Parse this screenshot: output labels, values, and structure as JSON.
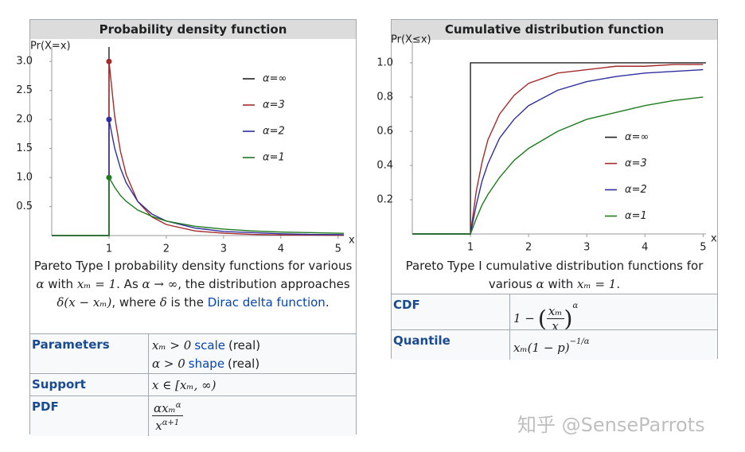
{
  "chart_data": [
    {
      "type": "line",
      "title": "Probability density function",
      "y_label": "Pr(X=x)",
      "x_label": "x",
      "xlim": [
        0,
        5.1
      ],
      "ylim": [
        0,
        3.25
      ],
      "xticks": [
        1,
        2,
        3,
        4,
        5
      ],
      "yticks": [
        0.5,
        {
          "value": 1,
          "label": "1.0"
        },
        1.5,
        {
          "value": 2,
          "label": "2.0"
        },
        2.5,
        {
          "value": 3,
          "label": "3.0"
        }
      ],
      "legend": "upper right",
      "series": [
        {
          "name": "α=∞",
          "color": "#222222",
          "markers": false,
          "x": [
            1,
            1
          ],
          "values": [
            0,
            3.25
          ]
        },
        {
          "name": "α=3",
          "color": "#a52a2a",
          "markers": true,
          "x": [
            0,
            1,
            1,
            1.1,
            1.2,
            1.3,
            1.5,
            1.75,
            2,
            2.5,
            3,
            3.5,
            4,
            4.5,
            5,
            5.1
          ],
          "values": [
            0,
            0,
            3,
            2.05,
            1.45,
            1.05,
            0.59,
            0.32,
            0.19,
            0.08,
            0.04,
            0.02,
            0.01,
            0.01,
            0.005,
            0.004
          ]
        },
        {
          "name": "α=2",
          "color": "#2f2f9e",
          "markers": true,
          "x": [
            0,
            1,
            1,
            1.1,
            1.2,
            1.3,
            1.5,
            1.75,
            2,
            2.5,
            3,
            3.5,
            4,
            4.5,
            5,
            5.1
          ],
          "values": [
            0,
            0,
            2,
            1.5,
            1.16,
            0.91,
            0.59,
            0.37,
            0.25,
            0.13,
            0.07,
            0.05,
            0.03,
            0.02,
            0.016,
            0.015
          ]
        },
        {
          "name": "α=1",
          "color": "#1e7b1e",
          "markers": true,
          "x": [
            0,
            1,
            1,
            1.1,
            1.2,
            1.3,
            1.5,
            1.75,
            2,
            2.5,
            3,
            3.5,
            4,
            4.5,
            5,
            5.1
          ],
          "values": [
            0,
            0,
            1,
            0.83,
            0.69,
            0.59,
            0.44,
            0.33,
            0.25,
            0.16,
            0.11,
            0.08,
            0.06,
            0.05,
            0.04,
            0.038
          ]
        }
      ]
    },
    {
      "type": "line",
      "title": "Cumulative distribution function",
      "y_label": "Pr(X≤x)",
      "x_label": "x",
      "xlim": [
        0,
        5.05
      ],
      "ylim": [
        0,
        1.13
      ],
      "xticks": [
        1,
        2,
        3,
        4,
        5
      ],
      "yticks": [
        0.2,
        0.4,
        0.6,
        0.8,
        {
          "value": 1,
          "label": "1.0"
        }
      ],
      "legend": "center right",
      "series": [
        {
          "name": "α=∞",
          "color": "#222222",
          "markers": false,
          "x": [
            0,
            1,
            1,
            5.05
          ],
          "values": [
            0,
            0,
            1,
            1
          ]
        },
        {
          "name": "α=3",
          "color": "#a52a2a",
          "markers": false,
          "x": [
            0,
            1,
            1.1,
            1.2,
            1.3,
            1.5,
            1.75,
            2,
            2.5,
            3,
            3.5,
            4,
            4.5,
            5
          ],
          "values": [
            0,
            0,
            0.25,
            0.42,
            0.55,
            0.7,
            0.81,
            0.88,
            0.94,
            0.96,
            0.98,
            0.98,
            0.99,
            0.99
          ]
        },
        {
          "name": "α=2",
          "color": "#2f2f9e",
          "markers": false,
          "x": [
            0,
            1,
            1.1,
            1.2,
            1.3,
            1.5,
            1.75,
            2,
            2.5,
            3,
            3.5,
            4,
            4.5,
            5
          ],
          "values": [
            0,
            0,
            0.17,
            0.31,
            0.41,
            0.56,
            0.67,
            0.75,
            0.84,
            0.89,
            0.92,
            0.94,
            0.95,
            0.96
          ]
        },
        {
          "name": "α=1",
          "color": "#1e7b1e",
          "markers": false,
          "x": [
            0,
            1,
            1.1,
            1.2,
            1.3,
            1.5,
            1.75,
            2,
            2.5,
            3,
            3.5,
            4,
            4.5,
            5
          ],
          "values": [
            0,
            0,
            0.09,
            0.17,
            0.23,
            0.33,
            0.43,
            0.5,
            0.6,
            0.67,
            0.71,
            0.75,
            0.78,
            0.8
          ]
        }
      ]
    }
  ],
  "pdf_box": {
    "caption": [
      {
        "k": "plain",
        "t": "Pareto Type I probability density functions for various "
      },
      {
        "k": "math",
        "t": "α"
      },
      {
        "k": "plain",
        "t": " with "
      },
      {
        "k": "math",
        "t": "xₘ = 1"
      },
      {
        "k": "plain",
        "t": ". As "
      },
      {
        "k": "math",
        "t": "α → ∞"
      },
      {
        "k": "plain",
        "t": ", the distribution approaches "
      },
      {
        "k": "math",
        "t": "δ(x − xₘ)"
      },
      {
        "k": "plain",
        "t": ", where "
      },
      {
        "k": "math",
        "t": "δ"
      },
      {
        "k": "plain",
        "t": " is the "
      },
      {
        "k": "link",
        "t": "Dirac delta function"
      },
      {
        "k": "plain",
        "t": "."
      }
    ],
    "rows": [
      {
        "label": "Parameters",
        "lines": [
          [
            {
              "k": "math",
              "t": "xₘ > 0"
            },
            {
              "k": "link",
              "t": "scale"
            },
            {
              "k": "plain",
              "t": "(real)"
            }
          ],
          [
            {
              "k": "math",
              "t": "α > 0"
            },
            {
              "k": "link",
              "t": "shape"
            },
            {
              "k": "plain",
              "t": "(real)"
            }
          ]
        ]
      },
      {
        "label": "Support",
        "lines": [
          [
            {
              "k": "math",
              "t": "x ∈ [xₘ, ∞)"
            }
          ]
        ]
      },
      {
        "label": "PDF",
        "lines": [
          [
            {
              "k": "frac",
              "num": "αxₘ",
              "num_sup": "α",
              "den": "x",
              "den_sup": "α+1",
              "paren": false
            }
          ]
        ]
      }
    ]
  },
  "cdf_box": {
    "caption": [
      {
        "k": "plain",
        "t": "Pareto Type I cumulative distribution functions for various "
      },
      {
        "k": "math",
        "t": "α"
      },
      {
        "k": "plain",
        "t": " with "
      },
      {
        "k": "math",
        "t": "xₘ = 1"
      },
      {
        "k": "plain",
        "t": "."
      }
    ],
    "rows": [
      {
        "label": "CDF",
        "lines": [
          [
            {
              "k": "math",
              "t": "1 −"
            },
            {
              "k": "frac",
              "num": "xₘ",
              "den": "x",
              "sup": "α",
              "paren": true
            }
          ]
        ]
      },
      {
        "label": "Quantile",
        "lines": [
          [
            {
              "k": "math",
              "t": "xₘ(1 − p)",
              "sup": "−1/α"
            }
          ]
        ]
      }
    ]
  },
  "watermark": "知乎 @SenseParrots"
}
